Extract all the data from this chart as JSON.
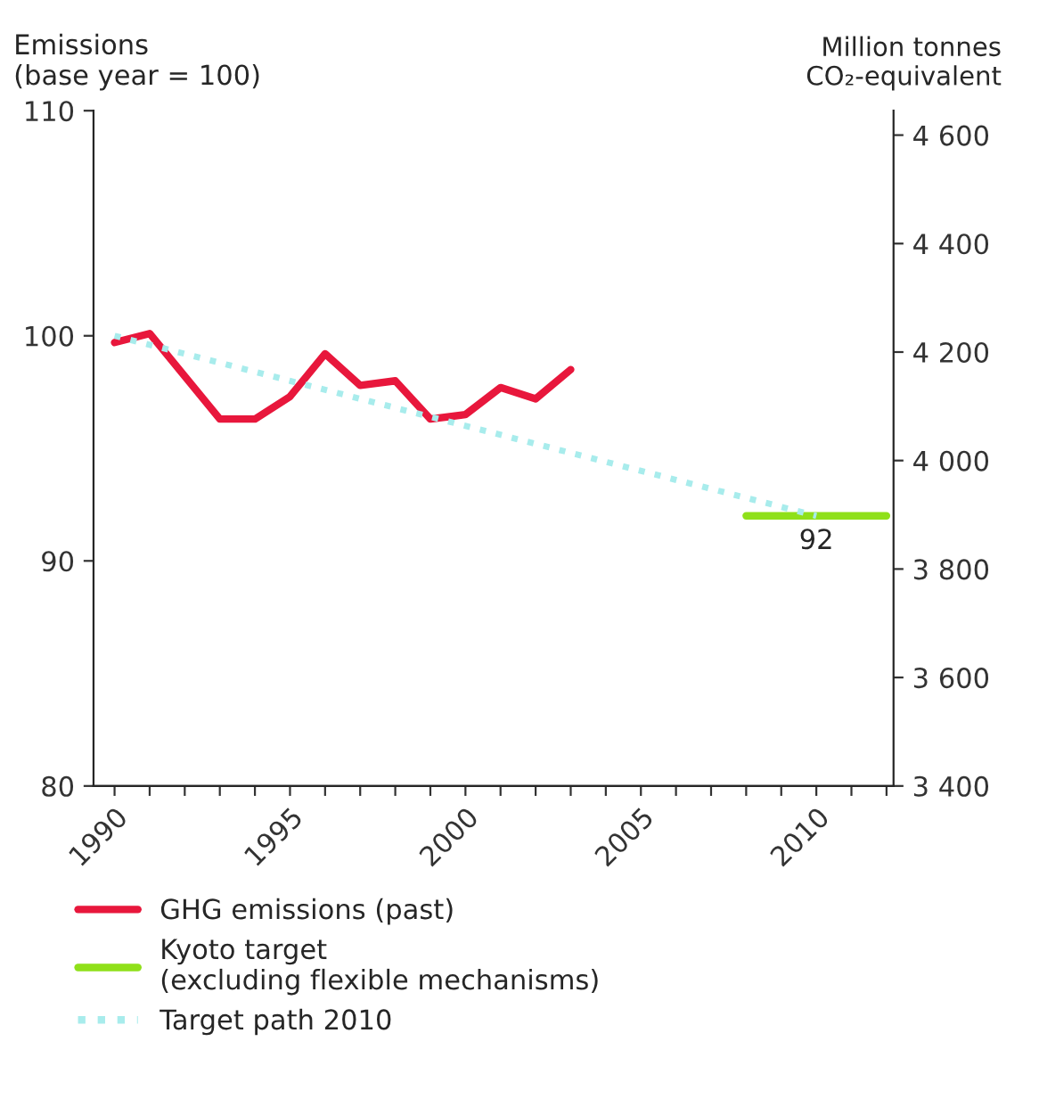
{
  "chart_data": {
    "type": "line",
    "ylabel": "Emissions\n(base year = 100)",
    "y2label": "Million tonnes\nCO₂-equivalent",
    "xlim": [
      1989.4,
      2012.2
    ],
    "xticks": [
      1990,
      {
        "value": 1991,
        "label": null
      },
      {
        "value": 1992,
        "label": null
      },
      {
        "value": 1993,
        "label": null
      },
      {
        "value": 1994,
        "label": null
      },
      1995,
      {
        "value": 1996,
        "label": null
      },
      {
        "value": 1997,
        "label": null
      },
      {
        "value": 1998,
        "label": null
      },
      {
        "value": 1999,
        "label": null
      },
      2000,
      {
        "value": 2001,
        "label": null
      },
      {
        "value": 2002,
        "label": null
      },
      {
        "value": 2003,
        "label": null
      },
      {
        "value": 2004,
        "label": null
      },
      2005,
      {
        "value": 2006,
        "label": null
      },
      {
        "value": 2007,
        "label": null
      },
      {
        "value": 2008,
        "label": null
      },
      {
        "value": 2009,
        "label": null
      },
      2010,
      {
        "value": 2011,
        "label": null
      },
      {
        "value": 2012,
        "label": null
      }
    ],
    "ylim": [
      80,
      110
    ],
    "yticks": [
      80,
      90,
      100,
      110
    ],
    "y2lim": [
      3400,
      4645
    ],
    "y2ticks": [
      {
        "value": 3400,
        "label": "3 400"
      },
      {
        "value": 3600,
        "label": "3 600"
      },
      {
        "value": 3800,
        "label": "3 800"
      },
      {
        "value": 4000,
        "label": "4 000"
      },
      {
        "value": 4200,
        "label": "4 200"
      },
      {
        "value": 4400,
        "label": "4 400"
      },
      {
        "value": 4600,
        "label": "4 600"
      }
    ],
    "series": [
      {
        "name": "GHG emissions (past)",
        "color": "#e8173c",
        "line_style": "solid",
        "x": [
          1990,
          1991,
          1992,
          1993,
          1994,
          1995,
          1996,
          1997,
          1998,
          1999,
          2000,
          2001,
          2002,
          2003
        ],
        "values": [
          99.7,
          100.1,
          98.2,
          96.3,
          96.3,
          97.3,
          99.2,
          97.8,
          98.0,
          96.3,
          96.5,
          97.7,
          97.2,
          98.5
        ]
      },
      {
        "name": "Kyoto target\n(excluding flexible mechanisms)",
        "color": "#8fe01a",
        "line_style": "solid",
        "x": [
          2008,
          2012
        ],
        "values": [
          92,
          92
        ]
      },
      {
        "name": "Target path 2010",
        "color": "#a8ecec",
        "line_style": "dotted",
        "x": [
          1990,
          2010
        ],
        "values": [
          100,
          92
        ]
      }
    ],
    "annotations": [
      {
        "text": "92",
        "x": 2010,
        "y": 92
      }
    ],
    "grid": false,
    "legend": "bottom"
  }
}
